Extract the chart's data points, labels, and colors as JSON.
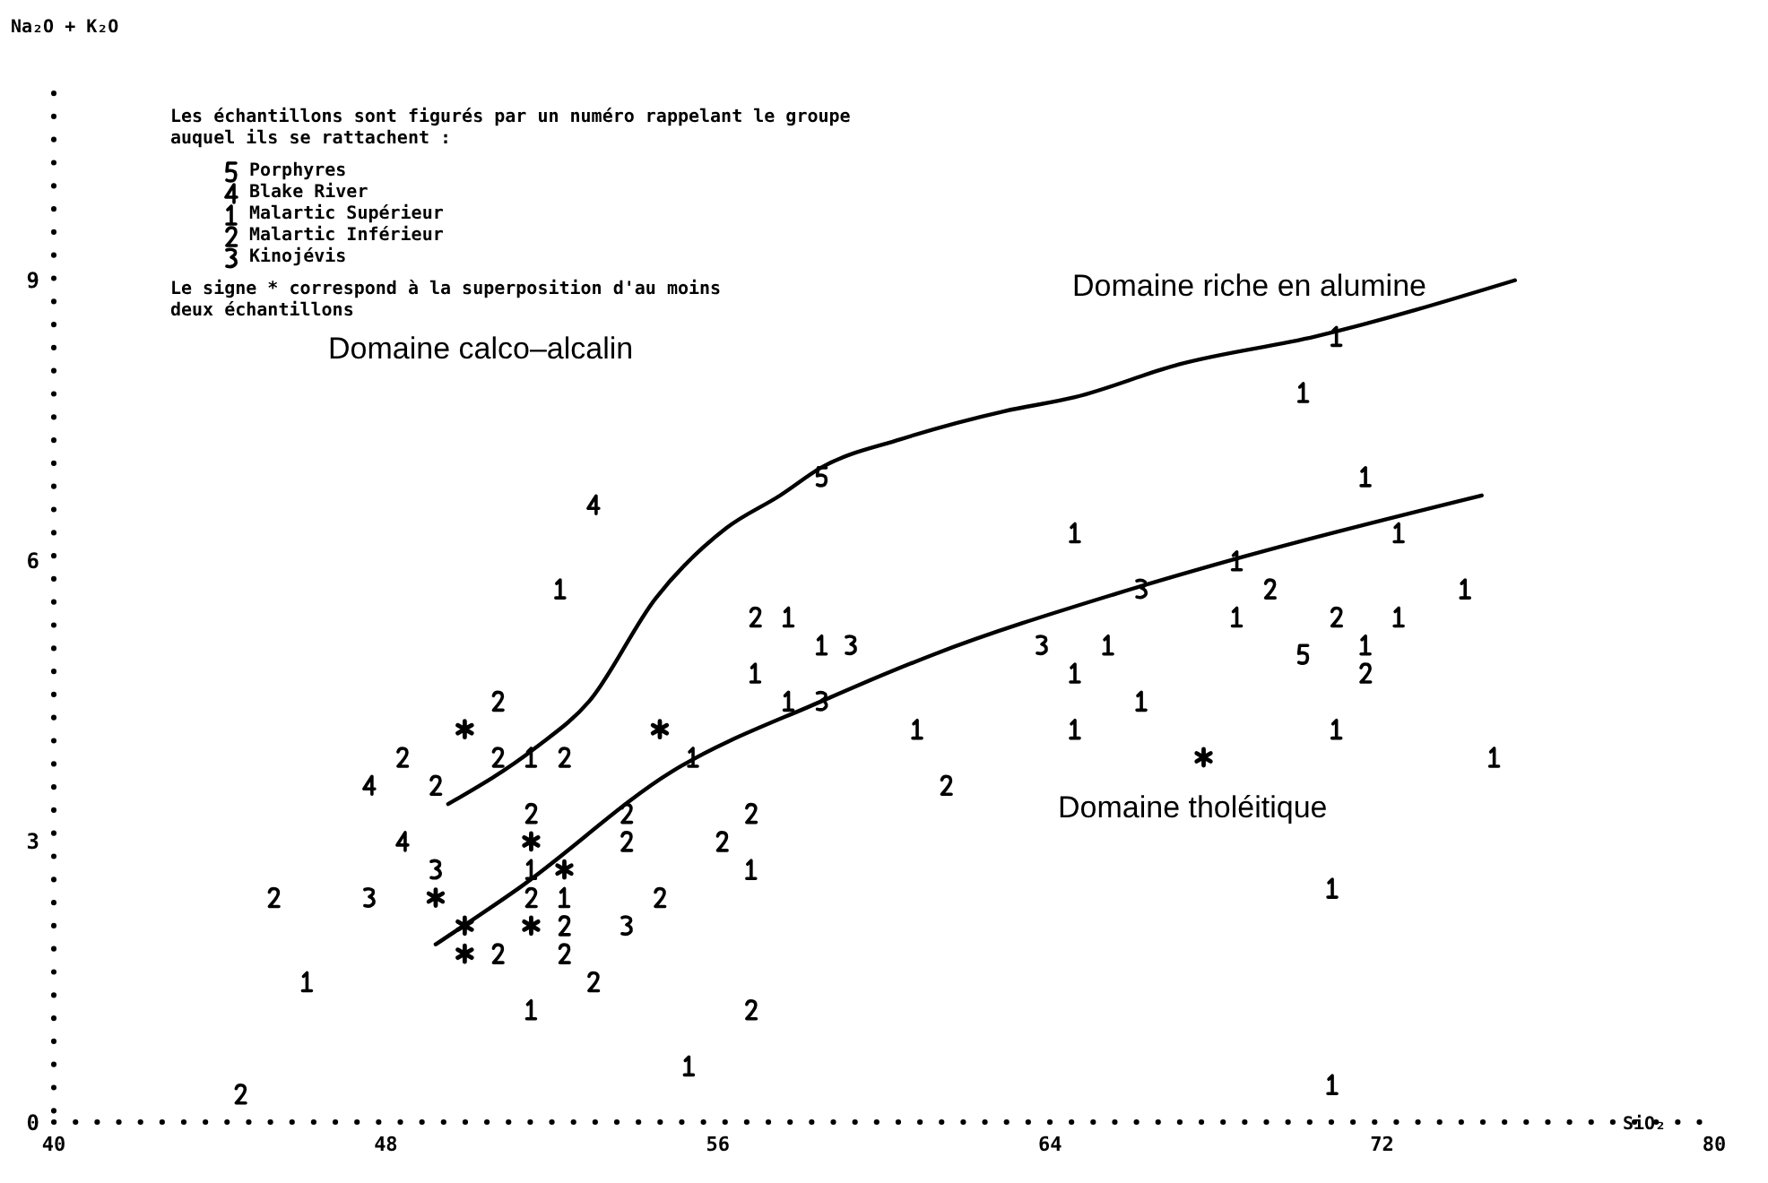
{
  "chart_data": {
    "type": "scatter",
    "xlabel": "SiO₂",
    "ylabel": "Na₂O + K₂O",
    "xlim": [
      40,
      80
    ],
    "xticks": [
      40,
      48,
      56,
      64,
      72,
      80
    ],
    "ylim": [
      0,
      11
    ],
    "yticks": [
      0,
      3,
      6,
      9
    ],
    "grid": false,
    "legend": "top left",
    "annotations": [
      "Les échantillons sont figurés par un numéro rappelant le groupe auquel ils se rattachent :",
      "Le signe * correspond à la superposition d'au moins deux échantillons",
      "Domaine calco–alcalin",
      "Domaine riche en alumine",
      "Domaine tholéitique"
    ],
    "series": [
      {
        "name": "Porphyres",
        "color": "#000000",
        "x": [
          58.5,
          70.1
        ],
        "values": [
          6.9,
          5.0
        ]
      },
      {
        "name": "Blake River",
        "color": "#000000",
        "x": [
          53.0,
          47.6,
          48.4
        ],
        "values": [
          6.6,
          3.6,
          3.0
        ]
      },
      {
        "name": "Malartic Supérieur",
        "color": "#000000",
        "x": [
          52.2,
          51.5,
          55.4,
          51.5,
          56.8,
          52.3,
          46.1,
          51.5,
          55.3,
          64.6,
          68.5,
          57.7,
          68.5,
          58.5,
          65.4,
          56.9,
          64.6,
          57.7,
          66.2,
          60.8,
          64.6,
          70.9,
          70.1,
          71.6,
          72.4,
          74.0,
          72.4,
          71.6,
          70.9,
          74.7,
          70.8,
          70.8
        ],
        "values": [
          5.7,
          3.9,
          3.9,
          2.7,
          2.7,
          2.4,
          1.5,
          1.2,
          0.6,
          6.3,
          6.0,
          5.4,
          5.4,
          5.1,
          5.1,
          4.8,
          4.8,
          4.5,
          4.5,
          4.2,
          4.2,
          8.4,
          7.8,
          6.9,
          6.3,
          5.7,
          5.4,
          5.1,
          4.2,
          3.9,
          2.5,
          0.4
        ]
      },
      {
        "name": "Malartic Inférieur",
        "color": "#000000",
        "x": [
          50.7,
          48.4,
          50.7,
          52.3,
          49.2,
          51.5,
          53.8,
          56.8,
          53.8,
          56.1,
          45.3,
          51.5,
          54.6,
          52.3,
          50.7,
          52.3,
          53.0,
          56.8,
          44.5,
          56.9,
          61.5,
          69.3,
          70.9,
          71.6
        ],
        "values": [
          4.5,
          3.9,
          3.9,
          3.9,
          3.6,
          3.3,
          3.3,
          3.3,
          3.0,
          3.0,
          2.4,
          2.4,
          2.4,
          2.1,
          1.8,
          1.8,
          1.5,
          1.2,
          0.3,
          5.4,
          3.6,
          5.7,
          5.4,
          4.8
        ]
      },
      {
        "name": "Kinojévis",
        "color": "#000000",
        "x": [
          49.2,
          47.6,
          53.8,
          59.2,
          63.8,
          58.5,
          66.2
        ],
        "values": [
          2.7,
          2.4,
          2.1,
          5.1,
          5.1,
          4.5,
          5.7
        ]
      },
      {
        "color": "#000000",
        "marker": "cross",
        "x": [
          49.9,
          54.6,
          51.5,
          52.3,
          49.2,
          49.9,
          51.5,
          49.9,
          67.7
        ],
        "values": [
          4.2,
          4.2,
          3.0,
          2.7,
          2.4,
          2.1,
          2.1,
          1.8,
          3.9
        ]
      },
      {
        "type": "line",
        "color": "#000000",
        "x": [
          49.5,
          51.6,
          52.9,
          54.5,
          56.2,
          57.5,
          58.5,
          60.4,
          62.9,
          64.6,
          67.1,
          70.4,
          75.2
        ],
        "values": [
          3.4,
          4.0,
          4.5,
          5.6,
          6.35,
          6.7,
          7.0,
          7.3,
          7.6,
          7.75,
          8.1,
          8.4,
          9.0
        ]
      },
      {
        "type": "line",
        "color": "#000000",
        "x": [
          49.2,
          51.2,
          54.9,
          58.5,
          61.2,
          65.6,
          68.7,
          74.4
        ],
        "values": [
          1.9,
          2.5,
          3.75,
          4.5,
          5.0,
          5.65,
          6.05,
          6.7
        ]
      }
    ]
  }
}
